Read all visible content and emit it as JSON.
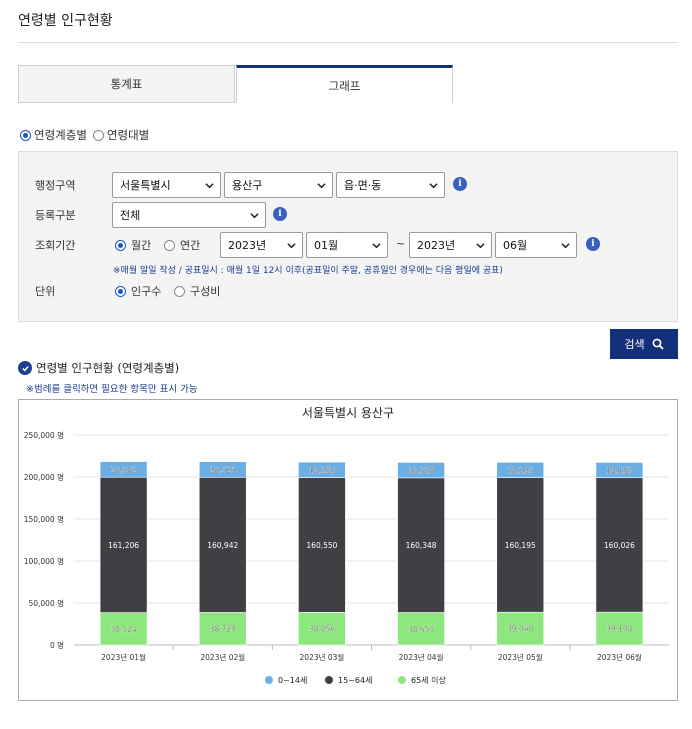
{
  "page": {
    "title": "연령별 인구현황"
  },
  "tabs": [
    {
      "label": "통계표",
      "active": false
    },
    {
      "label": "그래프",
      "active": true
    }
  ],
  "view_mode": {
    "options": [
      {
        "label": "연령계층별",
        "checked": true
      },
      {
        "label": "연령대별",
        "checked": false
      }
    ]
  },
  "filters": {
    "region_label": "행정구역",
    "region_sido": "서울특별시",
    "region_sigungu": "용산구",
    "region_dong": "읍·면·동",
    "register_label": "등록구분",
    "register_value": "전체",
    "period_label": "조회기간",
    "period_monthly": "월간",
    "period_yearly": "연간",
    "start_year": "2023년",
    "start_month": "01월",
    "tilde": "~",
    "end_year": "2023년",
    "end_month": "06월",
    "note": "※매월 말일 작성 / 공표일시 : 매월 1일 12시 이후(공표일이 주말, 공휴일인 경우에는 다음 평일에 공표)",
    "unit_label": "단위",
    "unit_population": "인구수",
    "unit_ratio": "구성비"
  },
  "search_button": {
    "label": "검색"
  },
  "section": {
    "title": "연령별 인구현황 (연령계층별)",
    "legend_note": "※범례를 클릭하면 필요한 항목만 표시 가능"
  },
  "colors": {
    "accent": "#15307a",
    "series_0_14": "#6aaee4",
    "series_15_64": "#404044",
    "series_65": "#8ee77e"
  },
  "chart_data": {
    "type": "bar",
    "stacked": true,
    "title": "서울특별시 용산구",
    "categories": [
      "2023년 01월",
      "2023년 02월",
      "2023년 03월",
      "2023년 04월",
      "2023년 05월",
      "2023년 06월"
    ],
    "series": [
      {
        "name": "0~14세",
        "color": "#6aaee4",
        "values": [
          18582,
          18524,
          18350,
          18328,
          18295,
          18153
        ],
        "labels": [
          "18,582",
          "18,524",
          "18,350",
          "18,328",
          "18,295",
          "18,153"
        ]
      },
      {
        "name": "15~64세",
        "color": "#404044",
        "values": [
          161206,
          160942,
          160550,
          160348,
          160195,
          160026
        ],
        "labels": [
          "161,206",
          "160,942",
          "160,550",
          "160,348",
          "160,195",
          "160,026"
        ]
      },
      {
        "name": "65세 이상",
        "color": "#8ee77e",
        "values": [
          38524,
          38729,
          38856,
          38655,
          39048,
          39108
        ],
        "labels": [
          "38,524",
          "38,729",
          "38,856",
          "38,655",
          "39,048",
          "39,108"
        ]
      }
    ],
    "y_ticks": [
      0,
      50000,
      100000,
      150000,
      200000,
      250000
    ],
    "y_tick_labels": [
      "0 명",
      "50,000 명",
      "100,000 명",
      "150,000 명",
      "200,000 명",
      "250,000 명"
    ],
    "ylim": [
      0,
      250000
    ],
    "grid": true,
    "legend_position": "bottom-center"
  }
}
